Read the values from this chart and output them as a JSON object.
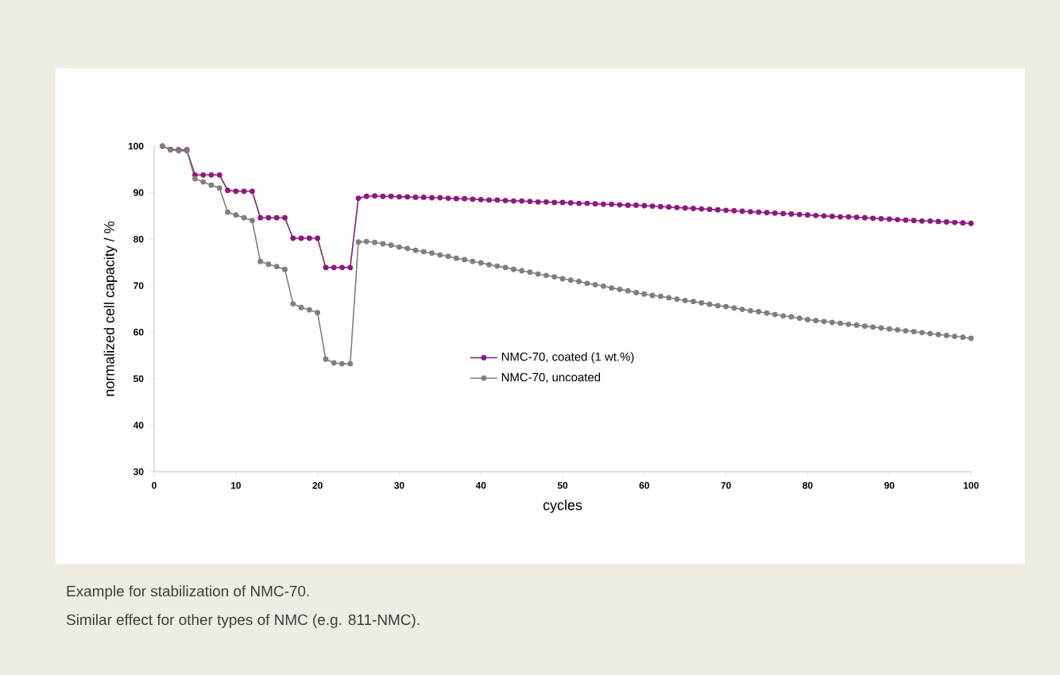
{
  "chart_data": {
    "type": "line",
    "xlabel": "cycles",
    "ylabel": "normalized cell capacity / %",
    "x": [
      1,
      2,
      3,
      4,
      5,
      6,
      7,
      8,
      9,
      10,
      11,
      12,
      13,
      14,
      15,
      16,
      17,
      18,
      19,
      20,
      21,
      22,
      23,
      24,
      25,
      26,
      27,
      28,
      29,
      30,
      31,
      32,
      33,
      34,
      35,
      36,
      37,
      38,
      39,
      40,
      41,
      42,
      43,
      44,
      45,
      46,
      47,
      48,
      49,
      50,
      51,
      52,
      53,
      54,
      55,
      56,
      57,
      58,
      59,
      60,
      61,
      62,
      63,
      64,
      65,
      66,
      67,
      68,
      69,
      70,
      71,
      72,
      73,
      74,
      75,
      76,
      77,
      78,
      79,
      80,
      81,
      82,
      83,
      84,
      85,
      86,
      87,
      88,
      89,
      90,
      91,
      92,
      93,
      94,
      95,
      96,
      97,
      98,
      99,
      100
    ],
    "series": [
      {
        "name": "NMC-70, coated (1 wt.%)",
        "color": "#8b1a7e",
        "values": [
          100,
          99.3,
          99.2,
          99.2,
          93.8,
          93.8,
          93.8,
          93.8,
          90.5,
          90.3,
          90.3,
          90.3,
          84.6,
          84.6,
          84.6,
          84.6,
          80.2,
          80.2,
          80.2,
          80.2,
          73.9,
          73.9,
          73.9,
          73.9,
          88.8,
          89.2,
          89.3,
          89.2,
          89.2,
          89.1,
          89.1,
          89.0,
          89.0,
          88.9,
          88.9,
          88.8,
          88.7,
          88.7,
          88.6,
          88.5,
          88.4,
          88.4,
          88.3,
          88.2,
          88.2,
          88.1,
          88.0,
          88.0,
          87.9,
          87.9,
          87.8,
          87.7,
          87.7,
          87.6,
          87.5,
          87.5,
          87.4,
          87.3,
          87.3,
          87.2,
          87.1,
          87.0,
          86.9,
          86.8,
          86.7,
          86.6,
          86.5,
          86.4,
          86.3,
          86.2,
          86.1,
          86.0,
          85.9,
          85.8,
          85.7,
          85.6,
          85.5,
          85.4,
          85.3,
          85.2,
          85.1,
          85.0,
          84.9,
          84.8,
          84.8,
          84.7,
          84.6,
          84.5,
          84.4,
          84.3,
          84.2,
          84.1,
          84.0,
          83.9,
          83.9,
          83.8,
          83.7,
          83.6,
          83.5,
          83.4
        ]
      },
      {
        "name": "NMC-70, uncoated",
        "color": "#7f7f7f",
        "values": [
          100,
          99.2,
          99.0,
          99.0,
          93.0,
          92.3,
          91.6,
          91.0,
          85.8,
          85.2,
          84.6,
          84.0,
          75.2,
          74.6,
          74.1,
          73.5,
          66.1,
          65.3,
          64.8,
          64.2,
          54.2,
          53.4,
          53.2,
          53.2,
          79.4,
          79.5,
          79.3,
          79.0,
          78.7,
          78.3,
          78.0,
          77.6,
          77.3,
          77.0,
          76.6,
          76.3,
          75.9,
          75.6,
          75.2,
          74.9,
          74.5,
          74.2,
          73.9,
          73.5,
          73.2,
          72.9,
          72.5,
          72.2,
          71.9,
          71.5,
          71.2,
          70.9,
          70.5,
          70.2,
          69.9,
          69.5,
          69.2,
          68.9,
          68.5,
          68.2,
          67.9,
          67.7,
          67.4,
          67.1,
          66.8,
          66.6,
          66.3,
          66.0,
          65.7,
          65.5,
          65.2,
          64.9,
          64.6,
          64.4,
          64.1,
          63.8,
          63.5,
          63.3,
          63.0,
          62.7,
          62.5,
          62.3,
          62.1,
          61.9,
          61.7,
          61.5,
          61.3,
          61.1,
          60.9,
          60.7,
          60.5,
          60.3,
          60.1,
          59.9,
          59.7,
          59.5,
          59.3,
          59.1,
          58.9,
          58.7
        ]
      }
    ],
    "xlim": [
      0,
      100
    ],
    "xticks": [
      0,
      10,
      20,
      30,
      40,
      50,
      60,
      70,
      80,
      90,
      100
    ],
    "ylim": [
      30,
      100
    ],
    "yticks": [
      30,
      40,
      50,
      60,
      70,
      80,
      90,
      100
    ],
    "grid": false,
    "legend": "bottom",
    "marker": "circle",
    "line_style": "solid",
    "annotations": [
      "Example for stabilization of NMC-70.",
      "Similar effect for other types of NMC (e.g. 811-NMC)."
    ]
  }
}
